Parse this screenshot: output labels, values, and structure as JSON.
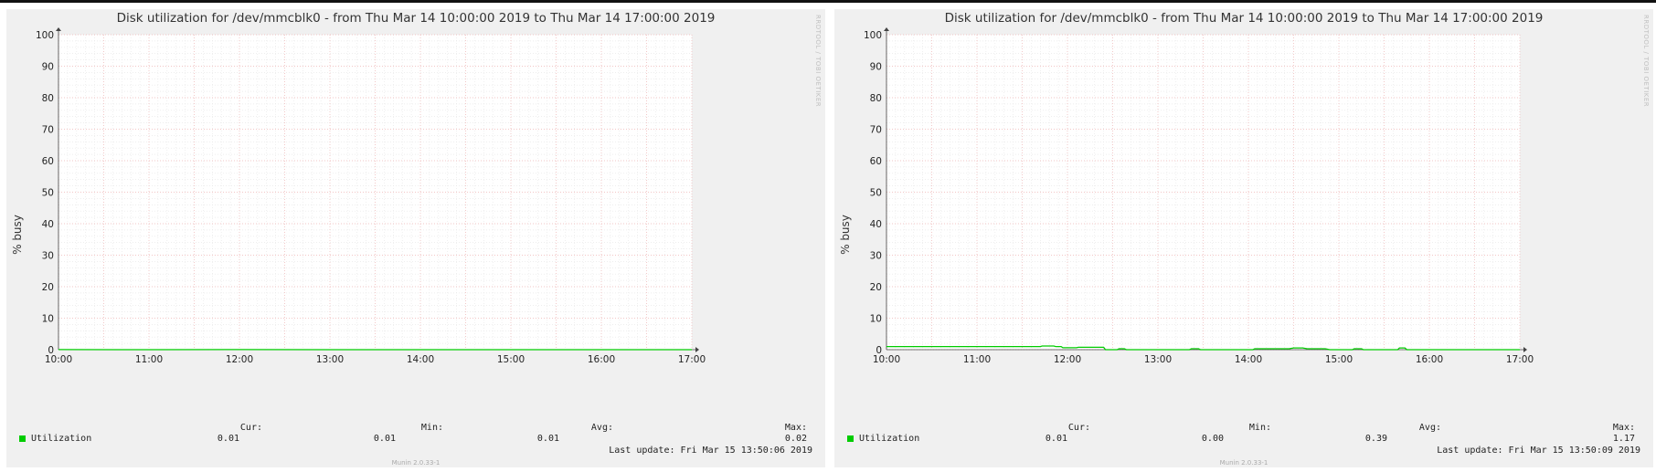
{
  "chart_data": [
    {
      "type": "line",
      "title": "Disk utilization for /dev/mmcblk0 - from Thu Mar 14 10:00:00 2019 to Thu Mar 14 17:00:00 2019",
      "ylabel": "% busy",
      "xlabel": "",
      "ylim": [
        0,
        100
      ],
      "xlim": [
        10,
        17
      ],
      "x_tick_labels": [
        "10:00",
        "11:00",
        "12:00",
        "13:00",
        "14:00",
        "15:00",
        "16:00",
        "17:00"
      ],
      "y_tick_labels": [
        "0",
        "10",
        "20",
        "30",
        "40",
        "50",
        "60",
        "70",
        "80",
        "90",
        "100"
      ],
      "grid": true,
      "series": [
        {
          "name": "Utilization",
          "color": "#00cc00",
          "points": [
            [
              10,
              0.02
            ],
            [
              11,
              0.01
            ],
            [
              12,
              0.02
            ],
            [
              13,
              0.01
            ],
            [
              14,
              0.01
            ],
            [
              15,
              0.01
            ],
            [
              16,
              0.01
            ],
            [
              17,
              0.01
            ]
          ]
        }
      ],
      "legend": {
        "label": "Utilization",
        "cur_label": "Cur:",
        "cur": "0.01",
        "min_label": "Min:",
        "min": "0.01",
        "avg_label": "Avg:",
        "avg": "0.01",
        "max_label": "Max:",
        "max": "0.02"
      },
      "last_update": "Last update: Fri Mar 15 13:50:06 2019",
      "side_text": "RRDTOOL / TOBI OETIKER",
      "version": "Munin 2.0.33-1"
    },
    {
      "type": "line",
      "title": "Disk utilization for /dev/mmcblk0 - from Thu Mar 14 10:00:00 2019 to Thu Mar 14 17:00:00 2019",
      "ylabel": "% busy",
      "xlabel": "",
      "ylim": [
        0,
        100
      ],
      "xlim": [
        10,
        17
      ],
      "x_tick_labels": [
        "10:00",
        "11:00",
        "12:00",
        "13:00",
        "14:00",
        "15:00",
        "16:00",
        "17:00"
      ],
      "y_tick_labels": [
        "0",
        "10",
        "20",
        "30",
        "40",
        "50",
        "60",
        "70",
        "80",
        "90",
        "100"
      ],
      "grid": true,
      "series": [
        {
          "name": "Utilization",
          "color": "#00cc00",
          "points": [
            [
              10,
              1.0
            ],
            [
              11.0,
              1.0
            ],
            [
              11.7,
              1.0
            ],
            [
              11.72,
              1.17
            ],
            [
              11.85,
              1.17
            ],
            [
              11.87,
              1.0
            ],
            [
              11.93,
              1.0
            ],
            [
              11.95,
              0.6
            ],
            [
              12.1,
              0.6
            ],
            [
              12.12,
              0.75
            ],
            [
              12.4,
              0.75
            ],
            [
              12.42,
              0.0
            ],
            [
              12.55,
              0.0
            ],
            [
              12.57,
              0.3
            ],
            [
              12.63,
              0.3
            ],
            [
              12.65,
              0.0
            ],
            [
              13.35,
              0.0
            ],
            [
              13.37,
              0.3
            ],
            [
              13.45,
              0.3
            ],
            [
              13.47,
              0.0
            ],
            [
              14.05,
              0.0
            ],
            [
              14.07,
              0.3
            ],
            [
              14.45,
              0.3
            ],
            [
              14.5,
              0.55
            ],
            [
              14.6,
              0.55
            ],
            [
              14.65,
              0.3
            ],
            [
              14.85,
              0.3
            ],
            [
              14.9,
              0.0
            ],
            [
              15.15,
              0.0
            ],
            [
              15.17,
              0.3
            ],
            [
              15.25,
              0.3
            ],
            [
              15.27,
              0.0
            ],
            [
              15.65,
              0.0
            ],
            [
              15.67,
              0.55
            ],
            [
              15.73,
              0.55
            ],
            [
              15.75,
              0.0
            ],
            [
              17,
              0.01
            ]
          ]
        }
      ],
      "legend": {
        "label": "Utilization",
        "cur_label": "Cur:",
        "cur": "0.01",
        "min_label": "Min:",
        "min": "0.00",
        "avg_label": "Avg:",
        "avg": "0.39",
        "max_label": "Max:",
        "max": "1.17"
      },
      "last_update": "Last update: Fri Mar 15 13:50:09 2019",
      "side_text": "RRDTOOL / TOBI OETIKER",
      "version": "Munin 2.0.33-1"
    }
  ]
}
